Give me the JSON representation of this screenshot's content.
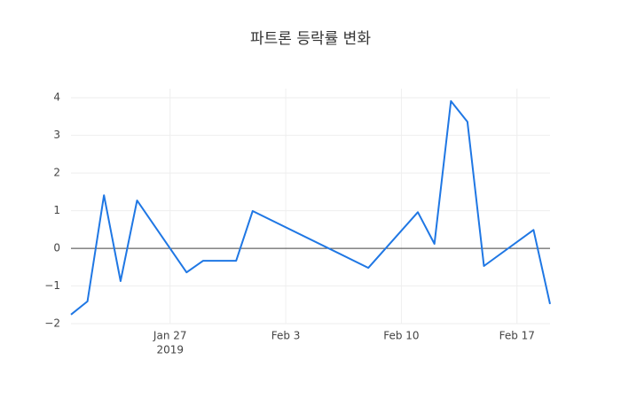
{
  "chart_data": {
    "type": "line",
    "title": "파트론 등락률 변화",
    "x": [
      "2019-01-21",
      "2019-01-22",
      "2019-01-23",
      "2019-01-24",
      "2019-01-25",
      "2019-01-28",
      "2019-01-29",
      "2019-01-31",
      "2019-02-01",
      "2019-02-08",
      "2019-02-11",
      "2019-02-12",
      "2019-02-13",
      "2019-02-14",
      "2019-02-15",
      "2019-02-18",
      "2019-02-19"
    ],
    "series": [
      {
        "color": "#1f77e4",
        "values": [
          -1.76,
          -1.41,
          1.41,
          -0.87,
          1.27,
          -0.64,
          -0.33,
          -0.33,
          0.99,
          -0.52,
          0.96,
          0.12,
          3.91,
          3.36,
          -0.47,
          0.49,
          -1.48
        ]
      }
    ],
    "xlim": [
      "2019-01-21",
      "2019-02-19"
    ],
    "xticks": [
      {
        "value": "2019-01-27",
        "label": "Jan 27"
      },
      {
        "value": "2019-02-03",
        "label": "Feb 3"
      },
      {
        "value": "2019-02-10",
        "label": "Feb 10"
      },
      {
        "value": "2019-02-17",
        "label": "Feb 17"
      }
    ],
    "x_year_label": "2019",
    "ylim": [
      -2,
      4.24
    ],
    "yticks": [
      {
        "value": -2,
        "label": "−2"
      },
      {
        "value": -1,
        "label": "−1"
      },
      0,
      1,
      2,
      3,
      4
    ],
    "grid": true,
    "zeroline": true
  }
}
